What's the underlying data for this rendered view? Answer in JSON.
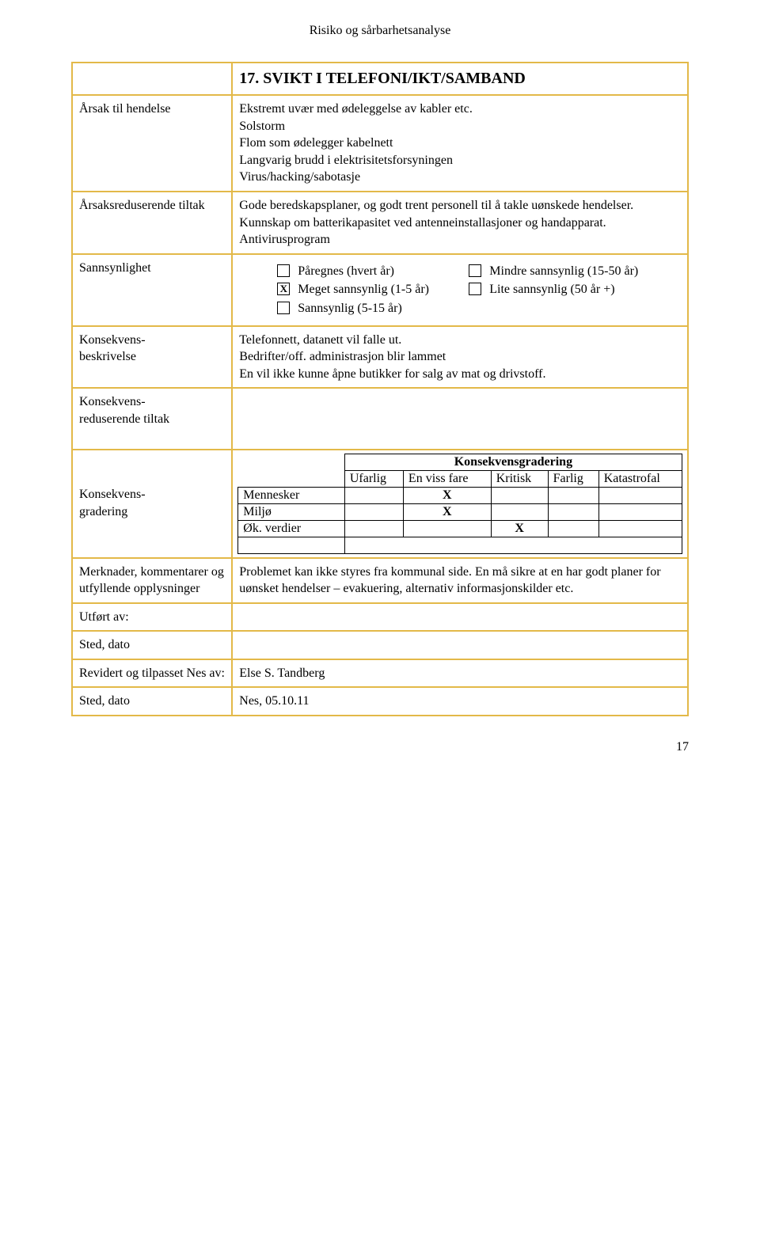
{
  "header": "Risiko  og sårbarhetsanalyse",
  "title": "17. SVIKT I TELEFONI/IKT/SAMBAND",
  "rows": {
    "arsak": {
      "label": "Årsak til hendelse",
      "text": "Ekstremt uvær med ødeleggelse av kabler etc.\nSolstorm\nFlom som ødelegger kabelnett\nLangvarig brudd i elektrisitetsforsyningen\nVirus/hacking/sabotasje"
    },
    "arsaksred": {
      "label": "Årsaksreduserende tiltak",
      "text": "Gode beredskapsplaner, og godt trent personell til å takle uønskede hendelser.\nKunnskap om batterikapasitet ved antenneinstallasjoner og handapparat.\nAntivirusprogram"
    },
    "sannsynlighet": {
      "label": "Sannsynlighet",
      "options": [
        {
          "left": "Påregnes (hvert år)",
          "leftChecked": false,
          "right": "Mindre sannsynlig (15-50 år)",
          "rightChecked": false
        },
        {
          "left": "Meget sannsynlig (1-5 år)",
          "leftChecked": true,
          "right": "Lite sannsynlig (50 år +)",
          "rightChecked": false
        },
        {
          "left": "Sannsynlig (5-15 år)",
          "leftChecked": false,
          "right": "",
          "rightChecked": null
        }
      ]
    },
    "konsbeskr": {
      "label": "Konsekvens-\nbeskrivelse",
      "text": "Telefonnett, datanett vil falle ut.\nBedrifter/off. administrasjon blir lammet\nEn vil ikke kunne åpne butikker for salg av mat og drivstoff."
    },
    "konsred": {
      "label": "Konsekvens-\nreduserende tiltak",
      "text": ""
    },
    "konsgrad": {
      "label": "Konsekvens-\ngradering",
      "title": "Konsekvensgradering",
      "headers": [
        "Ufarlig",
        "En viss fare",
        "Kritisk",
        "Farlig",
        "Katastrofal"
      ],
      "rowLabels": [
        "Mennesker",
        "Miljø",
        "Øk. verdier"
      ],
      "marks": [
        [
          "",
          "X",
          "",
          "",
          ""
        ],
        [
          "",
          "X",
          "",
          "",
          ""
        ],
        [
          "",
          "",
          "X",
          "",
          ""
        ]
      ]
    },
    "merknader": {
      "label": "Merknader, kommentarer og utfyllende opplysninger",
      "text": "Problemet kan ikke styres fra kommunal side. En må sikre at en har godt planer for uønsket hendelser – evakuering, alternativ informasjonskilder etc."
    },
    "utfort": {
      "label": "Utført av:",
      "text": ""
    },
    "sted1": {
      "label": "Sted, dato",
      "text": ""
    },
    "revidert": {
      "label": "Revidert og tilpasset Nes av:",
      "text": "Else S. Tandberg"
    },
    "sted2": {
      "label": "Sted, dato",
      "text": "Nes, 05.10.11"
    }
  },
  "pagenum": "17"
}
